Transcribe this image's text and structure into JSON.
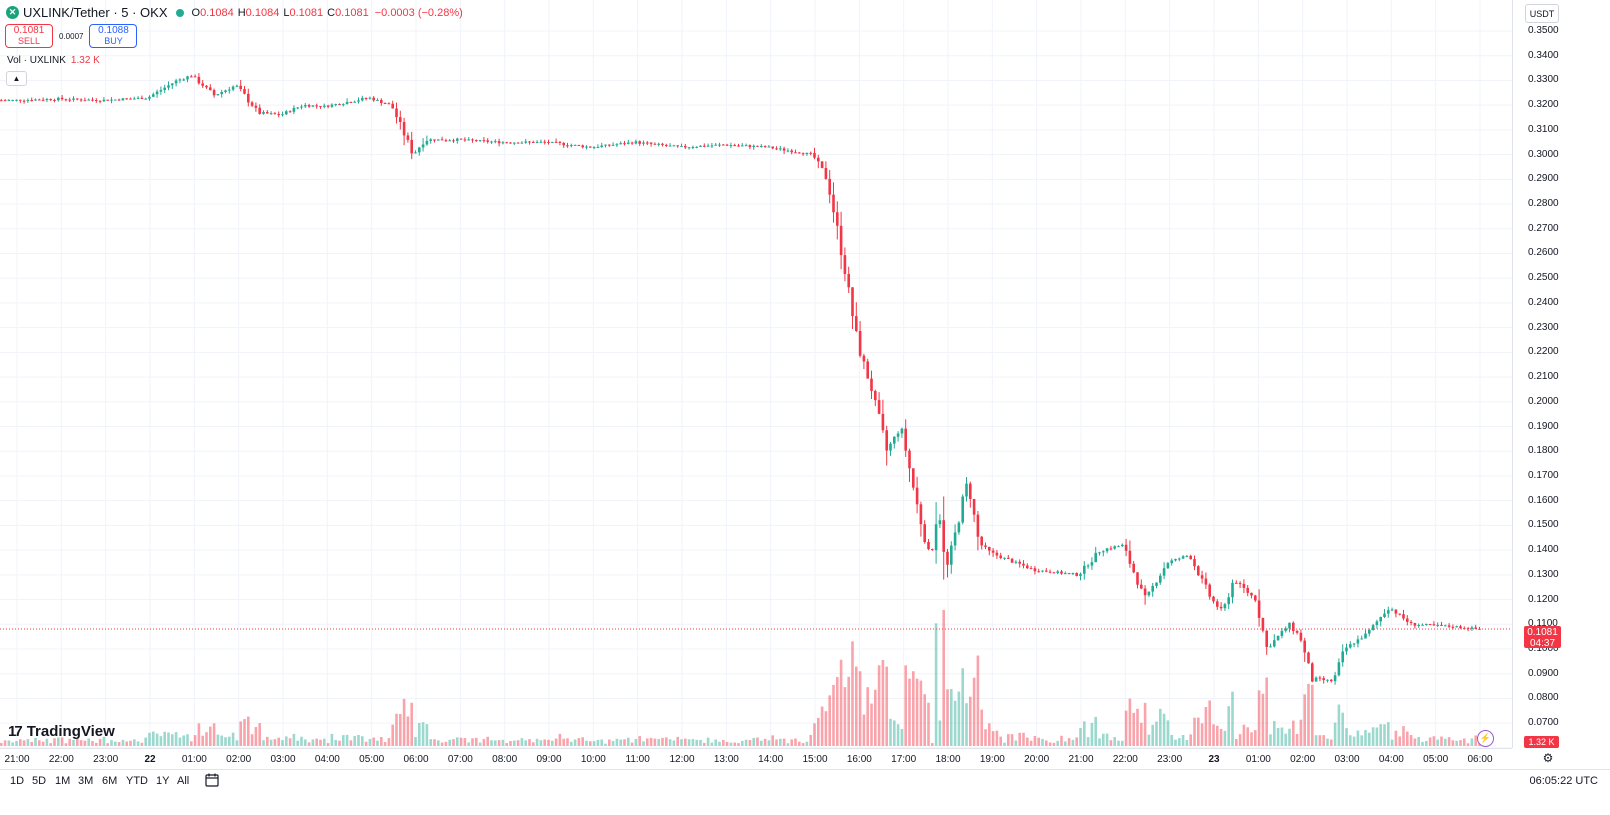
{
  "header": {
    "symbol_icon": "uxlink-logo-icon",
    "symbol_title": "UXLINK/Tether · 5 · OKX",
    "status_color": "#22ab94",
    "ohlc": {
      "o_label": "O",
      "o": "0.1084",
      "h_label": "H",
      "h": "0.1084",
      "l_label": "L",
      "l": "0.1081",
      "c_label": "C",
      "c": "0.1081",
      "change": "−0.0003 (−0.28%)"
    }
  },
  "trade": {
    "sell_price": "0.1081",
    "sell_label": "SELL",
    "spread": "0.0007",
    "buy_price": "0.1088",
    "buy_label": "BUY"
  },
  "volume_legend": {
    "label": "Vol · UXLINK",
    "value": "1.32 K"
  },
  "collapse_icon": "chevron-up-icon",
  "price_axis": {
    "currency": "USDT",
    "labels": [
      "0.3500",
      "0.3400",
      "0.3300",
      "0.3200",
      "0.3100",
      "0.3000",
      "0.2900",
      "0.2800",
      "0.2700",
      "0.2600",
      "0.2500",
      "0.2400",
      "0.2300",
      "0.2200",
      "0.2100",
      "0.2000",
      "0.1900",
      "0.1800",
      "0.1700",
      "0.1600",
      "0.1500",
      "0.1400",
      "0.1300",
      "0.1200",
      "0.1100",
      "0.1000",
      "0.0900",
      "0.0800",
      "0.0700"
    ],
    "last_price": "0.1081",
    "countdown": "04:37",
    "volume_tag": "1.32 K"
  },
  "time_axis": {
    "labels": [
      "21:00",
      "22:00",
      "23:00",
      "22",
      "01:00",
      "02:00",
      "03:00",
      "04:00",
      "05:00",
      "06:00",
      "07:00",
      "08:00",
      "09:00",
      "10:00",
      "11:00",
      "12:00",
      "13:00",
      "14:00",
      "15:00",
      "16:00",
      "17:00",
      "18:00",
      "19:00",
      "20:00",
      "21:00",
      "22:00",
      "23:00",
      "23",
      "01:00",
      "02:00",
      "03:00",
      "04:00",
      "05:00",
      "06:00"
    ]
  },
  "bottom_bar": {
    "ranges": [
      "1D",
      "5D",
      "1M",
      "3M",
      "6M",
      "YTD",
      "1Y",
      "All"
    ],
    "clock": "06:05:22 UTC"
  },
  "branding": {
    "logo_text": "TradingView",
    "logo_mark": "17"
  },
  "colors": {
    "up": "#22ab94",
    "down": "#f23645",
    "grid": "#f0f3fa"
  },
  "chart_data": {
    "type": "candlestick",
    "title": "UXLINK/Tether · 5 · OKX",
    "ylim": [
      0.065,
      0.355
    ],
    "x_labels": [
      "21:00",
      "22:00",
      "23:00",
      "22",
      "01:00",
      "02:00",
      "03:00",
      "04:00",
      "05:00",
      "06:00",
      "07:00",
      "08:00",
      "09:00",
      "10:00",
      "11:00",
      "12:00",
      "13:00",
      "14:00",
      "15:00",
      "16:00",
      "17:00",
      "18:00",
      "19:00",
      "20:00",
      "21:00",
      "22:00",
      "23:00",
      "23",
      "01:00",
      "02:00",
      "03:00",
      "04:00",
      "05:00",
      "06:00"
    ],
    "close_path": [
      {
        "x": "21:00",
        "y": 0.322
      },
      {
        "x": "22:00",
        "y": 0.3225
      },
      {
        "x": "23:00",
        "y": 0.322
      },
      {
        "x": "22",
        "y": 0.323
      },
      {
        "x": "00:40",
        "y": 0.33
      },
      {
        "x": "01:00",
        "y": 0.332
      },
      {
        "x": "01:30",
        "y": 0.324
      },
      {
        "x": "02:00",
        "y": 0.328
      },
      {
        "x": "02:30",
        "y": 0.317
      },
      {
        "x": "03:00",
        "y": 0.316
      },
      {
        "x": "03:30",
        "y": 0.32
      },
      {
        "x": "04:00",
        "y": 0.3195
      },
      {
        "x": "05:00",
        "y": 0.323
      },
      {
        "x": "05:30",
        "y": 0.32
      },
      {
        "x": "06:00",
        "y": 0.3
      },
      {
        "x": "06:15",
        "y": 0.306
      },
      {
        "x": "07:00",
        "y": 0.306
      },
      {
        "x": "08:00",
        "y": 0.305
      },
      {
        "x": "09:00",
        "y": 0.305
      },
      {
        "x": "10:00",
        "y": 0.303
      },
      {
        "x": "11:00",
        "y": 0.305
      },
      {
        "x": "12:00",
        "y": 0.303
      },
      {
        "x": "13:00",
        "y": 0.304
      },
      {
        "x": "14:00",
        "y": 0.303
      },
      {
        "x": "15:00",
        "y": 0.3
      },
      {
        "x": "15:20",
        "y": 0.29
      },
      {
        "x": "15:40",
        "y": 0.26
      },
      {
        "x": "16:00",
        "y": 0.225
      },
      {
        "x": "16:20",
        "y": 0.205
      },
      {
        "x": "16:40",
        "y": 0.18
      },
      {
        "x": "17:00",
        "y": 0.19
      },
      {
        "x": "17:20",
        "y": 0.16
      },
      {
        "x": "17:40",
        "y": 0.135
      },
      {
        "x": "17:50",
        "y": 0.16
      },
      {
        "x": "18:00",
        "y": 0.13
      },
      {
        "x": "18:30",
        "y": 0.168
      },
      {
        "x": "18:45",
        "y": 0.143
      },
      {
        "x": "19:00",
        "y": 0.139
      },
      {
        "x": "20:00",
        "y": 0.132
      },
      {
        "x": "21:00",
        "y": 0.13
      },
      {
        "x": "21:30",
        "y": 0.14
      },
      {
        "x": "22:00",
        "y": 0.142
      },
      {
        "x": "22:30",
        "y": 0.12
      },
      {
        "x": "23:00",
        "y": 0.135
      },
      {
        "x": "23:30",
        "y": 0.138
      },
      {
        "x": "23",
        "y": 0.12
      },
      {
        "x": "00:15",
        "y": 0.115
      },
      {
        "x": "00:30",
        "y": 0.128
      },
      {
        "x": "01:00",
        "y": 0.12
      },
      {
        "x": "01:15",
        "y": 0.1
      },
      {
        "x": "01:45",
        "y": 0.11
      },
      {
        "x": "02:00",
        "y": 0.105
      },
      {
        "x": "02:15",
        "y": 0.088
      },
      {
        "x": "02:45",
        "y": 0.087
      },
      {
        "x": "03:00",
        "y": 0.1
      },
      {
        "x": "03:30",
        "y": 0.106
      },
      {
        "x": "04:00",
        "y": 0.117
      },
      {
        "x": "04:30",
        "y": 0.11
      },
      {
        "x": "05:00",
        "y": 0.1095
      },
      {
        "x": "05:30",
        "y": 0.109
      },
      {
        "x": "06:00",
        "y": 0.1081
      }
    ],
    "last_price": 0.1081
  }
}
